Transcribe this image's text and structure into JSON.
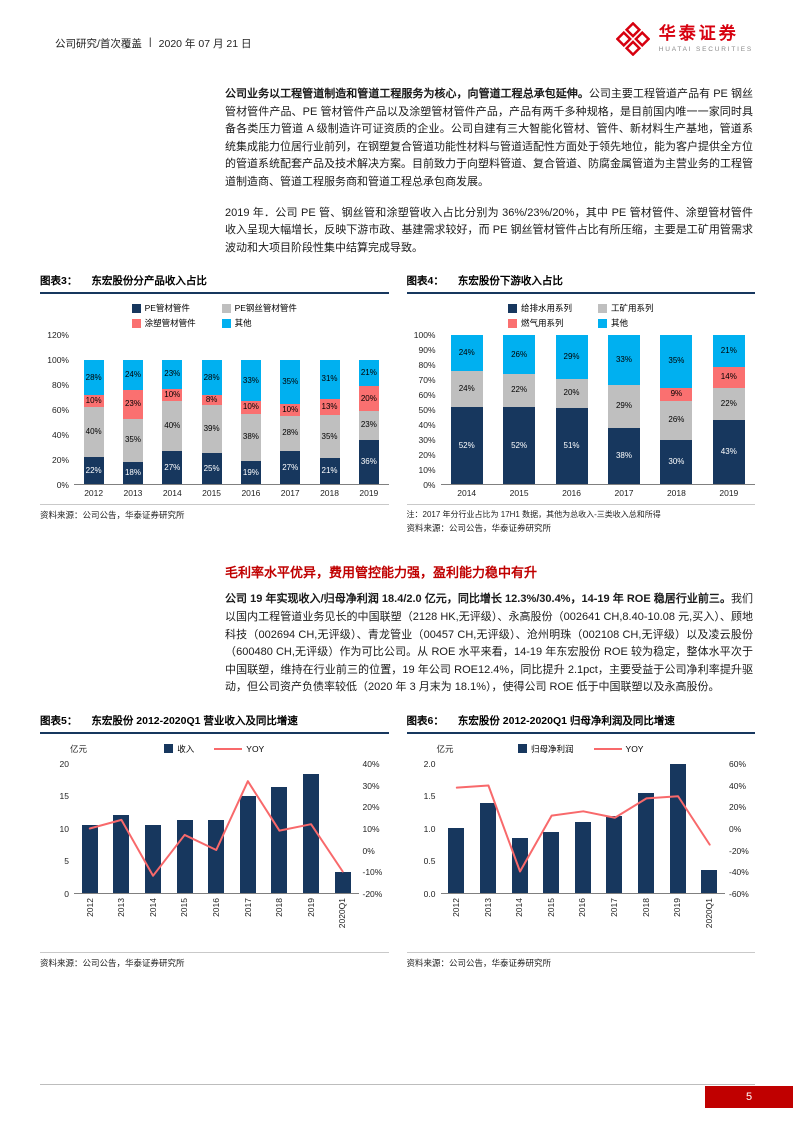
{
  "header": {
    "category": "公司研究/首次覆盖",
    "divider": "|",
    "date": "2020 年 07 月 21 日",
    "brand": "华泰证券",
    "brand_en": "HUATAI SECURITIES"
  },
  "paragraphs": {
    "p1_bold": "公司业务以工程管道制造和管道工程服务为核心，向管道工程总承包延伸。",
    "p1_rest": "公司主要工程管道产品有 PE 钢丝管材管件产品、PE 管材管件产品以及涂塑管材管件产品，产品有两千多种规格，是目前国内唯一一家同时具备各类压力管道 A 级制造许可证资质的企业。公司自建有三大智能化管材、管件、新材料生产基地，管道系统集成能力位居行业前列，在钢塑复合管道功能性材料与管道适配性方面处于领先地位，能为客户提供全方位的管道系统配套产品及技术解决方案。目前致力于向塑料管道、复合管道、防腐金属管道为主营业务的工程管道制造商、管道工程服务商和管道工程总承包商发展。",
    "p2": "2019 年．公司 PE 管、钢丝管和涂塑管收入占比分别为 36%/23%/20%，其中 PE 管材管件、涂塑管材管件收入呈现大幅增长，反映下游市政、基建需求较好，而 PE 钢丝管材管件占比有所压缩，主要是工矿用管需求波动和大项目阶段性集中结算完成导致。",
    "section_heading": "毛利率水平优异，费用管控能力强，盈利能力稳中有升",
    "p3_bold": "公司 19 年实现收入/归母净利润 18.4/2.0 亿元，同比增长 12.3%/30.4%，14-19 年 ROE 稳居行业前三。",
    "p3_rest": "我们以国内工程管道业务见长的中国联塑（2128 HK,无评级）、永高股份（002641 CH,8.40-10.08 元,买入）、顾地科技（002694 CH,无评级）、青龙管业（00457 CH,无评级）、沧州明珠（002108 CH,无评级）以及凌云股份（600480 CH,无评级）作为可比公司。从 ROE 水平来看，14-19 年东宏股份 ROE 较为稳定，整体水平次于中国联塑，维持在行业前三的位置，19 年公司 ROE12.4%，同比提升 2.1pct，主要受益于公司净利率提升驱动，但公司资产负债率较低（2020 年 3 月末为 18.1%），使得公司 ROE 低于中国联塑以及永高股份。"
  },
  "chart_data": [
    {
      "id": "figure3",
      "type": "stacked_bar",
      "fig_label": "图表3：",
      "title": "东宏股份分产品收入占比",
      "categories": [
        "2012",
        "2013",
        "2014",
        "2015",
        "2016",
        "2017",
        "2018",
        "2019"
      ],
      "series": [
        {
          "name": "PE管材管件",
          "color": "#17375e",
          "label_color": "#ffffff",
          "values": [
            22,
            18,
            27,
            25,
            19,
            27,
            21,
            36
          ]
        },
        {
          "name": "PE钢丝管材管件",
          "color": "#bfbfbf",
          "label_color": "#000000",
          "values": [
            40,
            35,
            40,
            39,
            38,
            28,
            35,
            23
          ]
        },
        {
          "name": "涂塑管材管件",
          "color": "#fa7070",
          "label_color": "#000000",
          "values": [
            10,
            23,
            10,
            8,
            10,
            10,
            13,
            20
          ]
        },
        {
          "name": "其他",
          "color": "#00b0f0",
          "label_color": "#000000",
          "values": [
            28,
            24,
            23,
            28,
            33,
            35,
            31,
            21
          ]
        }
      ],
      "ymax": 120,
      "yticks": [
        "120%",
        "100%",
        "80%",
        "60%",
        "40%",
        "20%",
        "0%"
      ],
      "grid": false,
      "legend_position": "top",
      "source": "资料来源：公司公告，华泰证券研究所"
    },
    {
      "id": "figure4",
      "type": "stacked_bar",
      "fig_label": "图表4：",
      "title": "东宏股份下游收入占比",
      "categories": [
        "2014",
        "2015",
        "2016",
        "2017",
        "2018",
        "2019"
      ],
      "series": [
        {
          "name": "给排水用系列",
          "color": "#17375e",
          "label_color": "#ffffff",
          "values": [
            52,
            52,
            51,
            38,
            30,
            43
          ]
        },
        {
          "name": "工矿用系列",
          "color": "#bfbfbf",
          "label_color": "#000000",
          "values": [
            24,
            22,
            20,
            29,
            26,
            22
          ]
        },
        {
          "name": "燃气用系列",
          "color": "#fa7070",
          "label_color": "#000000",
          "values": [
            0,
            0,
            0,
            0,
            9,
            14
          ]
        },
        {
          "name": "其他",
          "color": "#00b0f0",
          "label_color": "#000000",
          "values": [
            24,
            26,
            29,
            33,
            35,
            21
          ]
        }
      ],
      "ymax": 100,
      "yticks": [
        "100%",
        "90%",
        "80%",
        "70%",
        "60%",
        "50%",
        "40%",
        "30%",
        "20%",
        "10%",
        "0%"
      ],
      "grid": false,
      "legend_position": "top",
      "note": "注：2017 年分行业占比为 17H1 数据，其他为总收入-三类收入总和所得",
      "source": "资料来源：公司公告，华泰证券研究所"
    },
    {
      "id": "figure5",
      "type": "bar_line",
      "fig_label": "图表5：",
      "title": "东宏股份 2012-2020Q1 营业收入及同比增速",
      "unit": "亿元",
      "categories": [
        "2012",
        "2013",
        "2014",
        "2015",
        "2016",
        "2017",
        "2018",
        "2019",
        "2020Q1"
      ],
      "bar": {
        "name": "收入",
        "color": "#17375e",
        "values": [
          10.6,
          12.1,
          10.6,
          11.3,
          11.3,
          15.0,
          16.4,
          18.4,
          3.3
        ]
      },
      "line": {
        "name": "YOY",
        "color": "#f8696b",
        "values": [
          10,
          14,
          -12,
          7,
          0,
          32,
          9,
          12,
          -10
        ]
      },
      "left_max": 20,
      "left_ticks": [
        "20",
        "15",
        "10",
        "5",
        "0"
      ],
      "right_min": -20,
      "right_max": 40,
      "right_ticks": [
        "40%",
        "30%",
        "20%",
        "10%",
        "0%",
        "-10%",
        "-20%"
      ],
      "grid": false,
      "legend_position": "top",
      "source": "资料来源：公司公告，华泰证券研究所"
    },
    {
      "id": "figure6",
      "type": "bar_line",
      "fig_label": "图表6：",
      "title": "东宏股份 2012-2020Q1 归母净利润及同比增速",
      "unit": "亿元",
      "categories": [
        "2012",
        "2013",
        "2014",
        "2015",
        "2016",
        "2017",
        "2018",
        "2019",
        "2020Q1"
      ],
      "bar": {
        "name": "归母净利润",
        "color": "#17375e",
        "values": [
          1.0,
          1.4,
          0.85,
          0.95,
          1.1,
          1.2,
          1.55,
          2.0,
          0.35
        ]
      },
      "line": {
        "name": "YOY",
        "color": "#f8696b",
        "values": [
          38,
          40,
          -40,
          12,
          16,
          10,
          28,
          30,
          -15
        ]
      },
      "left_max": 2.0,
      "left_ticks": [
        "2.0",
        "1.5",
        "1.0",
        "0.5",
        "0.0"
      ],
      "right_min": -60,
      "right_max": 60,
      "right_ticks": [
        "60%",
        "40%",
        "20%",
        "0%",
        "-20%",
        "-40%",
        "-60%"
      ],
      "grid": false,
      "legend_position": "top",
      "source": "资料来源：公司公告，华泰证券研究所"
    }
  ],
  "footer": {
    "page_number": "5"
  }
}
